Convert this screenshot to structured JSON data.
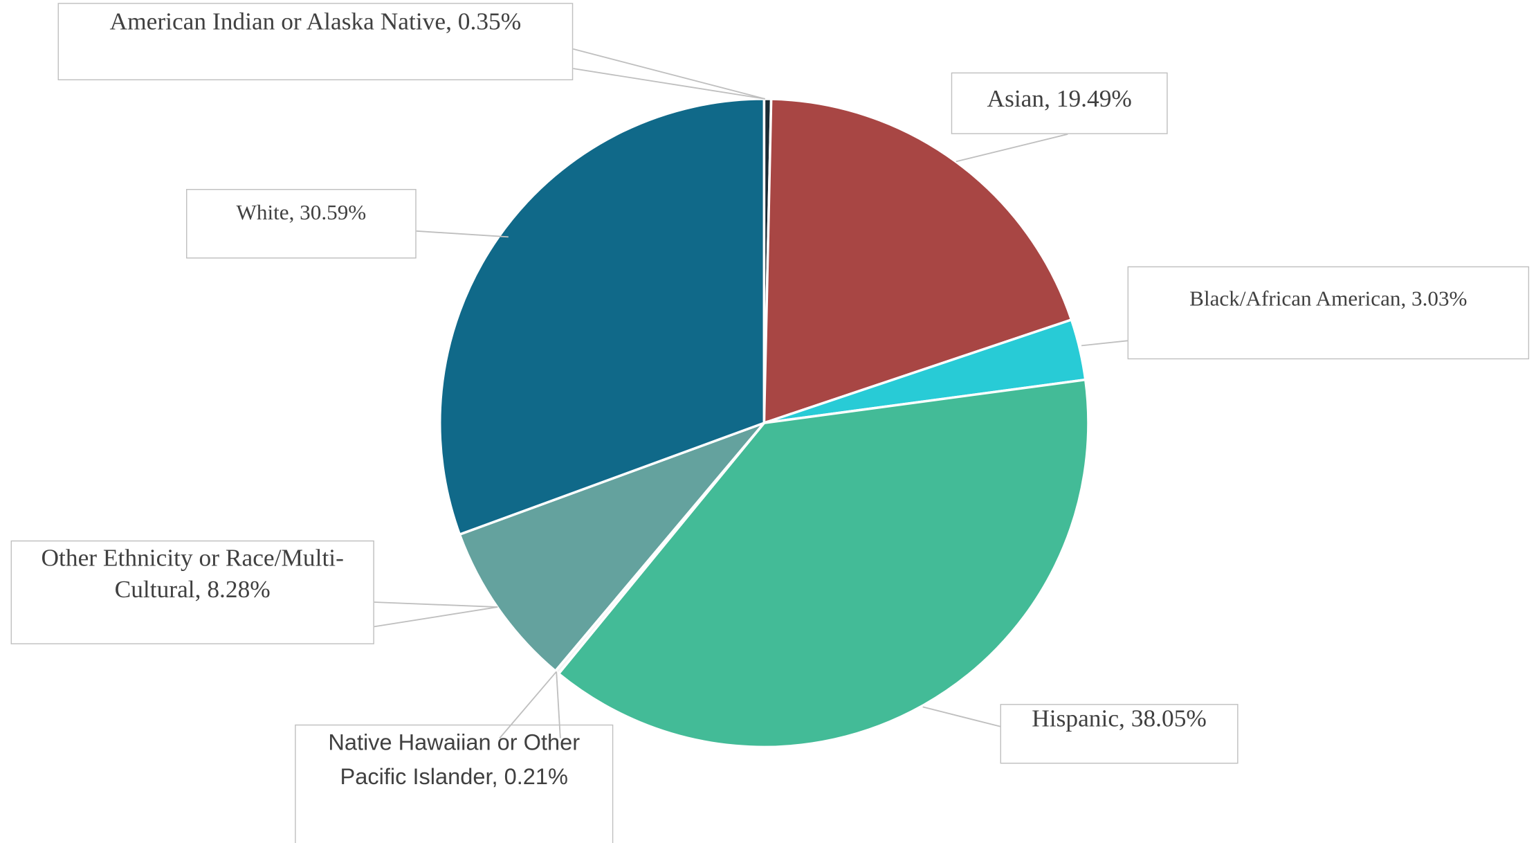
{
  "chart_data": {
    "type": "pie",
    "values": [
      0.35,
      19.49,
      3.03,
      38.05,
      0.21,
      8.28,
      30.59
    ],
    "value_labels": [
      "American Indian or Alaska Native, 0.35%",
      "Asian, 19.49%",
      "Black/African American, 3.03%",
      "Hispanic, 38.05%",
      "Native Hawaiian or Other Pacific Islander, 0.21%",
      "Other Ethnicity or Race/Multi-Cultural, 8.28%",
      "White, 30.59%"
    ],
    "colors": [
      "#1b2b34",
      "#a84644",
      "#28cbd6",
      "#43bb97",
      "#f4f4f4",
      "#64a29e",
      "#106989"
    ]
  }
}
